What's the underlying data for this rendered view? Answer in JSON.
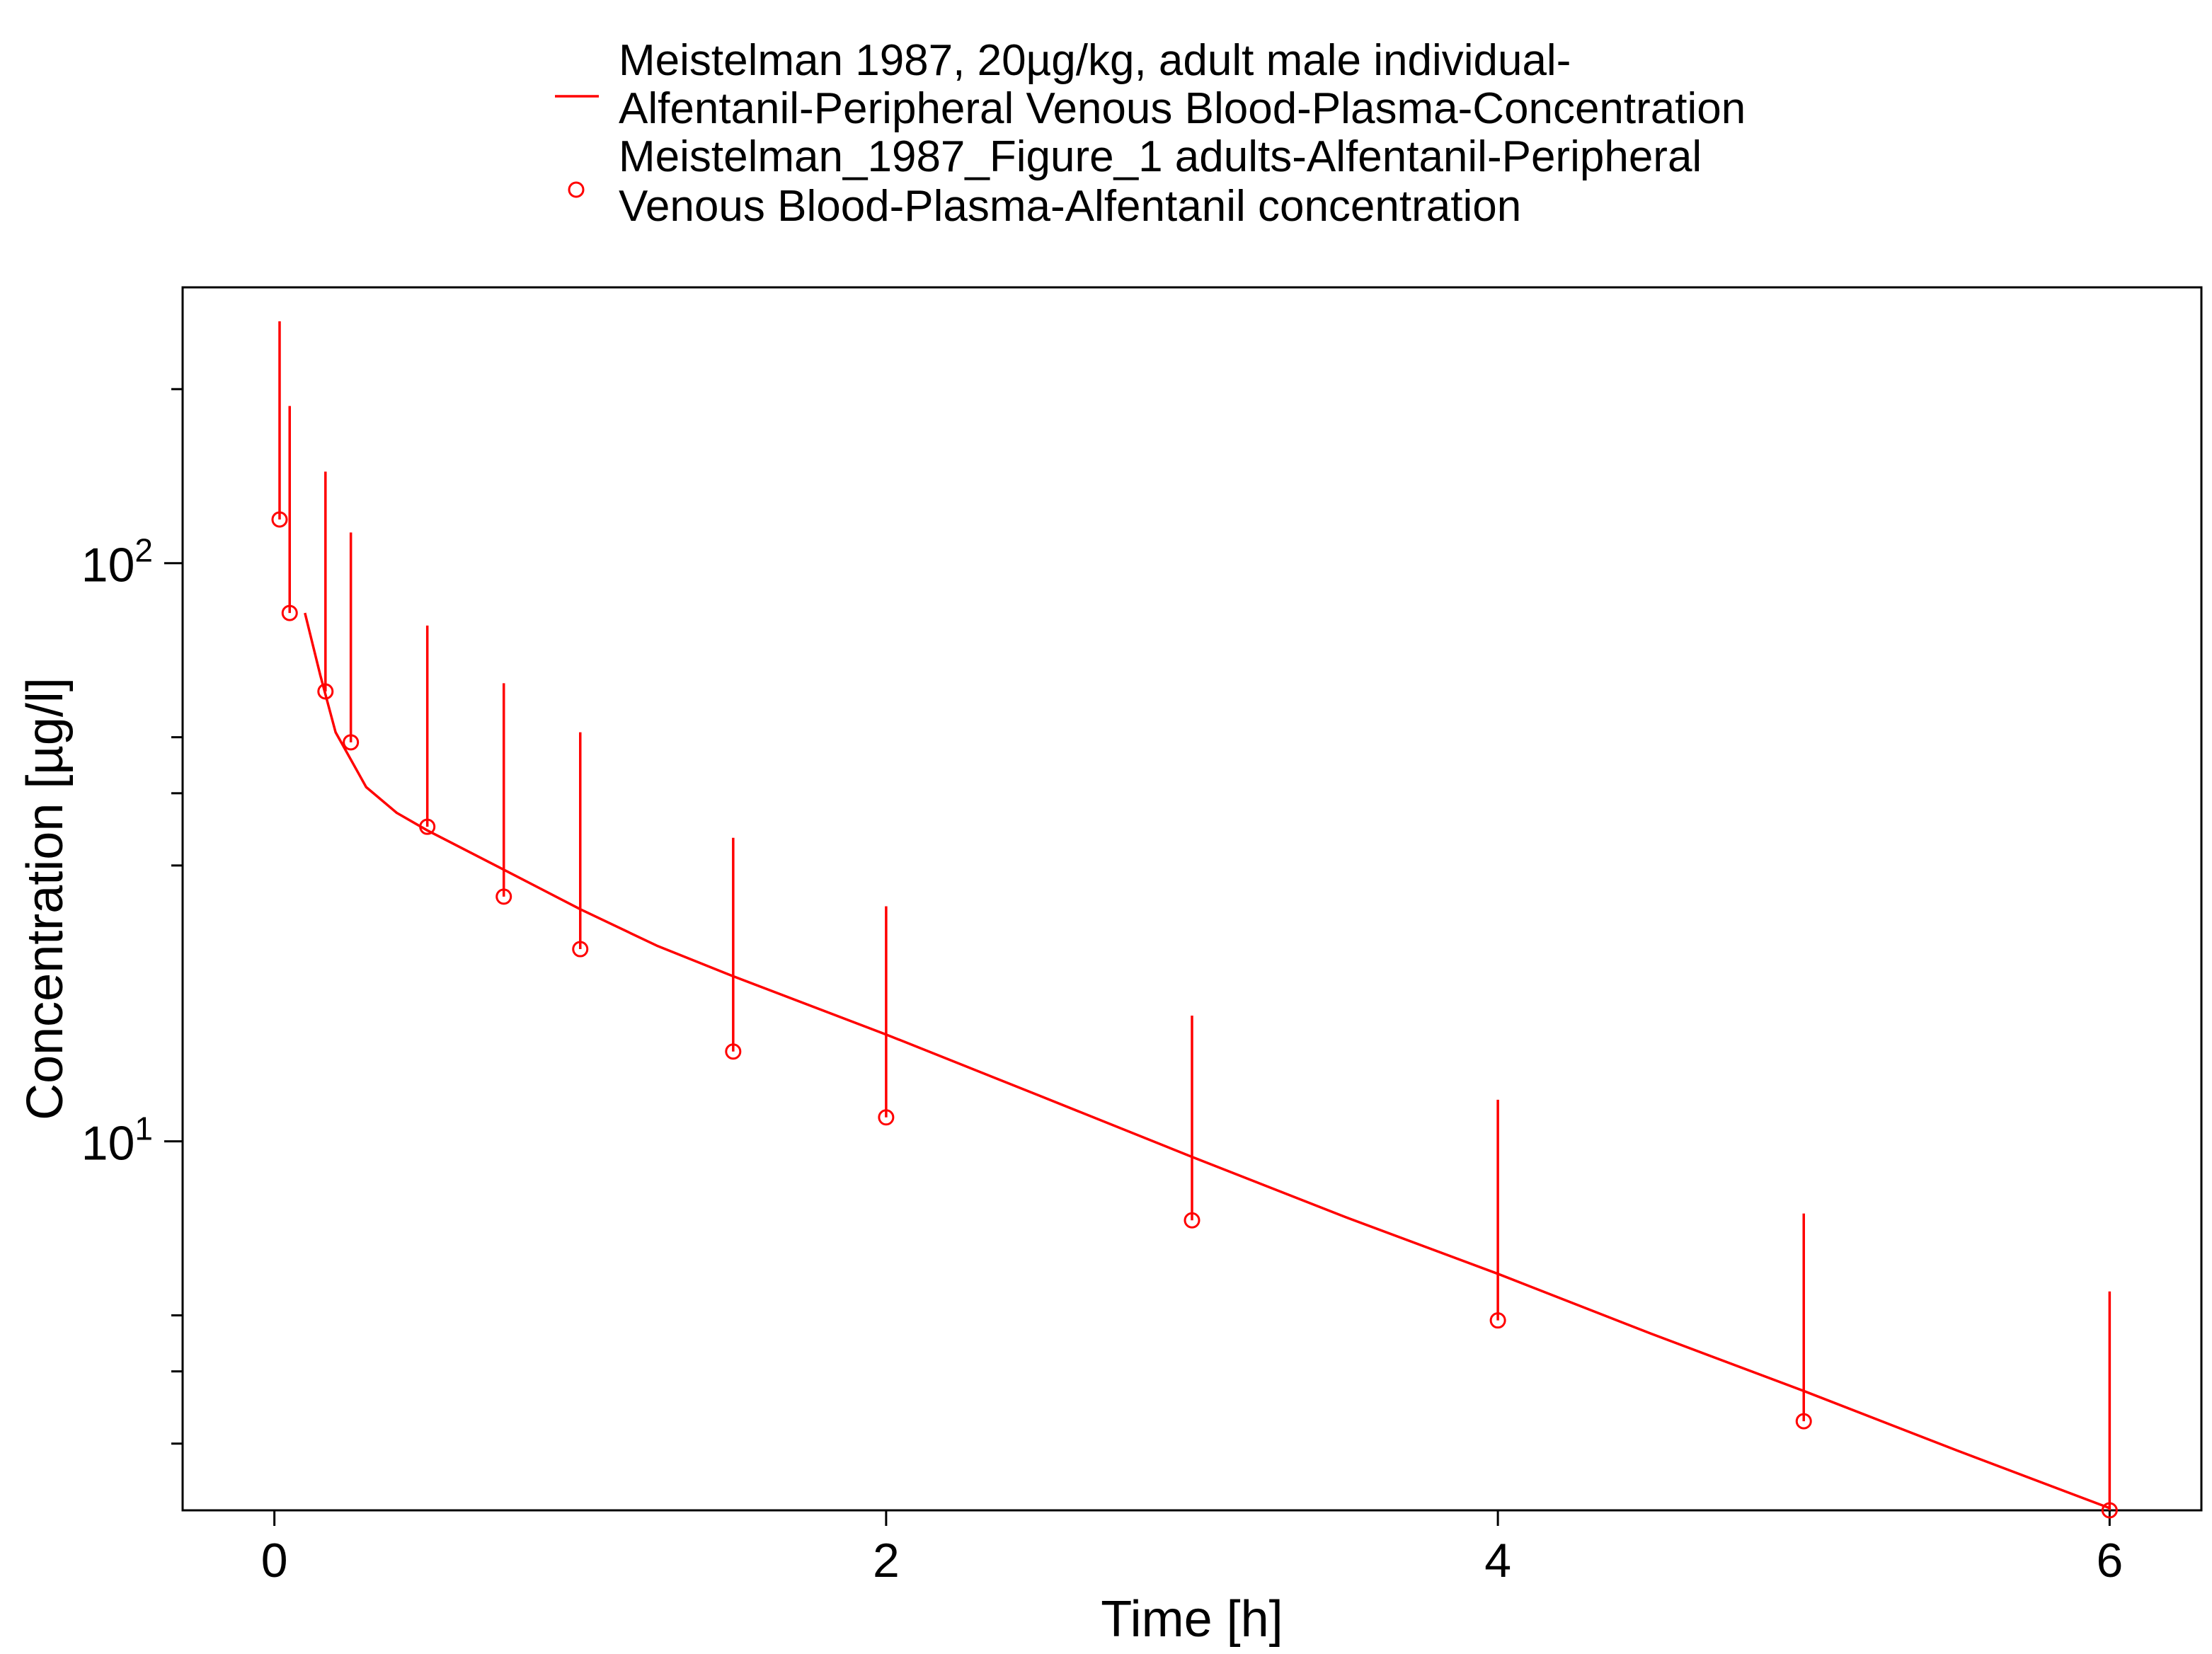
{
  "chart_data": {
    "type": "line",
    "title": "",
    "xlabel": "Time [h]",
    "ylabel": "Concentration [µg/l]",
    "xlim": [
      -0.3,
      6.3
    ],
    "ylim": [
      2.3,
      300
    ],
    "yscale": "log",
    "xticks": [
      0,
      2,
      4,
      6
    ],
    "xtick_labels": [
      "0",
      "2",
      "4",
      "6"
    ],
    "yticks": [
      10,
      100
    ],
    "ytick_labels": [
      {
        "base": "10",
        "exp": "1"
      },
      {
        "base": "10",
        "exp": "2"
      }
    ],
    "y_minor_ticks": [
      3,
      4,
      5,
      30,
      40,
      50,
      200
    ],
    "grid": false,
    "legend_position": "top",
    "color": "#ff0000",
    "legend": [
      {
        "marker": "line",
        "lines": [
          "Meistelman 1987, 20µg/kg, adult male individual-",
          "Alfentanil-Peripheral Venous Blood-Plasma-Concentration"
        ]
      },
      {
        "marker": "circle",
        "lines": [
          "Meistelman_1987_Figure_1 adults-Alfentanil-Peripheral",
          "Venous Blood-Plasma-Alfentanil concentration"
        ]
      }
    ],
    "series": [
      {
        "name": "Meistelman 1987, 20µg/kg, adult male individual-Alfentanil-Peripheral Venous Blood-Plasma-Concentration",
        "kind": "line",
        "x": [
          0.1,
          0.15,
          0.2,
          0.3,
          0.4,
          0.5,
          0.75,
          1.0,
          1.25,
          1.5,
          2.0,
          2.5,
          3.0,
          3.5,
          4.0,
          4.5,
          5.0,
          5.5,
          6.0
        ],
        "y": [
          82,
          64,
          51,
          41,
          37,
          34.5,
          29.5,
          25.2,
          21.8,
          19.3,
          15.3,
          12.0,
          9.4,
          7.4,
          5.9,
          4.65,
          3.7,
          2.92,
          2.32
        ]
      },
      {
        "name": "Meistelman_1987_Figure_1 adults-Alfentanil-Peripheral Venous Blood-Plasma-Alfentanil concentration",
        "kind": "scatter",
        "x": [
          0.017,
          0.05,
          0.167,
          0.25,
          0.5,
          0.75,
          1.0,
          1.5,
          2.0,
          3.0,
          4.0,
          5.0,
          6.0
        ],
        "y": [
          119,
          82,
          60,
          49,
          35,
          26.5,
          21.5,
          14.3,
          11.0,
          7.3,
          4.9,
          3.28,
          2.3
        ],
        "yerr_upper": [
          262,
          187,
          144,
          113,
          78,
          62,
          51,
          33.5,
          25.5,
          16.5,
          11.8,
          7.5,
          5.5
        ]
      }
    ]
  }
}
